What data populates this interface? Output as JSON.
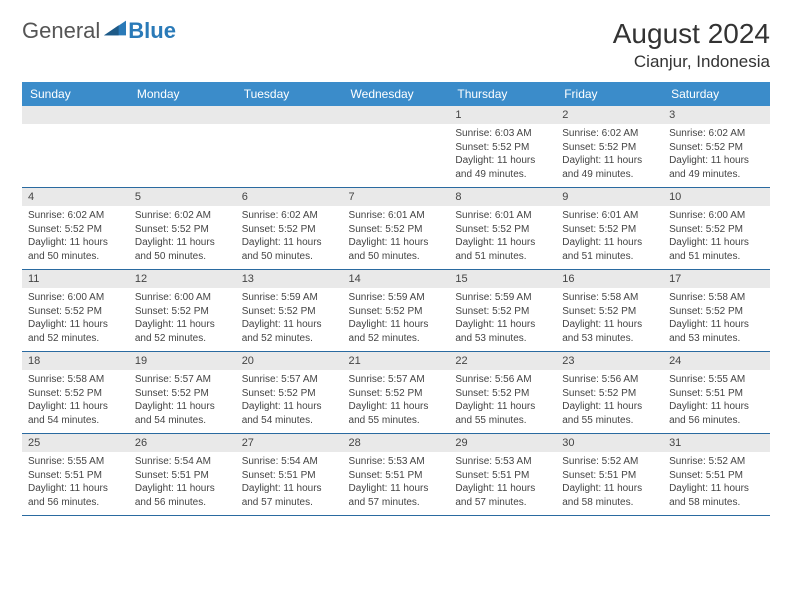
{
  "logo": {
    "text1": "General",
    "text2": "Blue",
    "icon_color": "#2a7ab8"
  },
  "title": "August 2024",
  "location": "Cianjur, Indonesia",
  "colors": {
    "header_bg": "#3b8cca",
    "header_text": "#ffffff",
    "band_bg": "#e9e9e9",
    "border": "#2a6aa0",
    "text": "#444444"
  },
  "day_headers": [
    "Sunday",
    "Monday",
    "Tuesday",
    "Wednesday",
    "Thursday",
    "Friday",
    "Saturday"
  ],
  "weeks": [
    [
      {
        "num": "",
        "sunrise": "",
        "sunset": "",
        "daylight1": "",
        "daylight2": ""
      },
      {
        "num": "",
        "sunrise": "",
        "sunset": "",
        "daylight1": "",
        "daylight2": ""
      },
      {
        "num": "",
        "sunrise": "",
        "sunset": "",
        "daylight1": "",
        "daylight2": ""
      },
      {
        "num": "",
        "sunrise": "",
        "sunset": "",
        "daylight1": "",
        "daylight2": ""
      },
      {
        "num": "1",
        "sunrise": "Sunrise: 6:03 AM",
        "sunset": "Sunset: 5:52 PM",
        "daylight1": "Daylight: 11 hours",
        "daylight2": "and 49 minutes."
      },
      {
        "num": "2",
        "sunrise": "Sunrise: 6:02 AM",
        "sunset": "Sunset: 5:52 PM",
        "daylight1": "Daylight: 11 hours",
        "daylight2": "and 49 minutes."
      },
      {
        "num": "3",
        "sunrise": "Sunrise: 6:02 AM",
        "sunset": "Sunset: 5:52 PM",
        "daylight1": "Daylight: 11 hours",
        "daylight2": "and 49 minutes."
      }
    ],
    [
      {
        "num": "4",
        "sunrise": "Sunrise: 6:02 AM",
        "sunset": "Sunset: 5:52 PM",
        "daylight1": "Daylight: 11 hours",
        "daylight2": "and 50 minutes."
      },
      {
        "num": "5",
        "sunrise": "Sunrise: 6:02 AM",
        "sunset": "Sunset: 5:52 PM",
        "daylight1": "Daylight: 11 hours",
        "daylight2": "and 50 minutes."
      },
      {
        "num": "6",
        "sunrise": "Sunrise: 6:02 AM",
        "sunset": "Sunset: 5:52 PM",
        "daylight1": "Daylight: 11 hours",
        "daylight2": "and 50 minutes."
      },
      {
        "num": "7",
        "sunrise": "Sunrise: 6:01 AM",
        "sunset": "Sunset: 5:52 PM",
        "daylight1": "Daylight: 11 hours",
        "daylight2": "and 50 minutes."
      },
      {
        "num": "8",
        "sunrise": "Sunrise: 6:01 AM",
        "sunset": "Sunset: 5:52 PM",
        "daylight1": "Daylight: 11 hours",
        "daylight2": "and 51 minutes."
      },
      {
        "num": "9",
        "sunrise": "Sunrise: 6:01 AM",
        "sunset": "Sunset: 5:52 PM",
        "daylight1": "Daylight: 11 hours",
        "daylight2": "and 51 minutes."
      },
      {
        "num": "10",
        "sunrise": "Sunrise: 6:00 AM",
        "sunset": "Sunset: 5:52 PM",
        "daylight1": "Daylight: 11 hours",
        "daylight2": "and 51 minutes."
      }
    ],
    [
      {
        "num": "11",
        "sunrise": "Sunrise: 6:00 AM",
        "sunset": "Sunset: 5:52 PM",
        "daylight1": "Daylight: 11 hours",
        "daylight2": "and 52 minutes."
      },
      {
        "num": "12",
        "sunrise": "Sunrise: 6:00 AM",
        "sunset": "Sunset: 5:52 PM",
        "daylight1": "Daylight: 11 hours",
        "daylight2": "and 52 minutes."
      },
      {
        "num": "13",
        "sunrise": "Sunrise: 5:59 AM",
        "sunset": "Sunset: 5:52 PM",
        "daylight1": "Daylight: 11 hours",
        "daylight2": "and 52 minutes."
      },
      {
        "num": "14",
        "sunrise": "Sunrise: 5:59 AM",
        "sunset": "Sunset: 5:52 PM",
        "daylight1": "Daylight: 11 hours",
        "daylight2": "and 52 minutes."
      },
      {
        "num": "15",
        "sunrise": "Sunrise: 5:59 AM",
        "sunset": "Sunset: 5:52 PM",
        "daylight1": "Daylight: 11 hours",
        "daylight2": "and 53 minutes."
      },
      {
        "num": "16",
        "sunrise": "Sunrise: 5:58 AM",
        "sunset": "Sunset: 5:52 PM",
        "daylight1": "Daylight: 11 hours",
        "daylight2": "and 53 minutes."
      },
      {
        "num": "17",
        "sunrise": "Sunrise: 5:58 AM",
        "sunset": "Sunset: 5:52 PM",
        "daylight1": "Daylight: 11 hours",
        "daylight2": "and 53 minutes."
      }
    ],
    [
      {
        "num": "18",
        "sunrise": "Sunrise: 5:58 AM",
        "sunset": "Sunset: 5:52 PM",
        "daylight1": "Daylight: 11 hours",
        "daylight2": "and 54 minutes."
      },
      {
        "num": "19",
        "sunrise": "Sunrise: 5:57 AM",
        "sunset": "Sunset: 5:52 PM",
        "daylight1": "Daylight: 11 hours",
        "daylight2": "and 54 minutes."
      },
      {
        "num": "20",
        "sunrise": "Sunrise: 5:57 AM",
        "sunset": "Sunset: 5:52 PM",
        "daylight1": "Daylight: 11 hours",
        "daylight2": "and 54 minutes."
      },
      {
        "num": "21",
        "sunrise": "Sunrise: 5:57 AM",
        "sunset": "Sunset: 5:52 PM",
        "daylight1": "Daylight: 11 hours",
        "daylight2": "and 55 minutes."
      },
      {
        "num": "22",
        "sunrise": "Sunrise: 5:56 AM",
        "sunset": "Sunset: 5:52 PM",
        "daylight1": "Daylight: 11 hours",
        "daylight2": "and 55 minutes."
      },
      {
        "num": "23",
        "sunrise": "Sunrise: 5:56 AM",
        "sunset": "Sunset: 5:52 PM",
        "daylight1": "Daylight: 11 hours",
        "daylight2": "and 55 minutes."
      },
      {
        "num": "24",
        "sunrise": "Sunrise: 5:55 AM",
        "sunset": "Sunset: 5:51 PM",
        "daylight1": "Daylight: 11 hours",
        "daylight2": "and 56 minutes."
      }
    ],
    [
      {
        "num": "25",
        "sunrise": "Sunrise: 5:55 AM",
        "sunset": "Sunset: 5:51 PM",
        "daylight1": "Daylight: 11 hours",
        "daylight2": "and 56 minutes."
      },
      {
        "num": "26",
        "sunrise": "Sunrise: 5:54 AM",
        "sunset": "Sunset: 5:51 PM",
        "daylight1": "Daylight: 11 hours",
        "daylight2": "and 56 minutes."
      },
      {
        "num": "27",
        "sunrise": "Sunrise: 5:54 AM",
        "sunset": "Sunset: 5:51 PM",
        "daylight1": "Daylight: 11 hours",
        "daylight2": "and 57 minutes."
      },
      {
        "num": "28",
        "sunrise": "Sunrise: 5:53 AM",
        "sunset": "Sunset: 5:51 PM",
        "daylight1": "Daylight: 11 hours",
        "daylight2": "and 57 minutes."
      },
      {
        "num": "29",
        "sunrise": "Sunrise: 5:53 AM",
        "sunset": "Sunset: 5:51 PM",
        "daylight1": "Daylight: 11 hours",
        "daylight2": "and 57 minutes."
      },
      {
        "num": "30",
        "sunrise": "Sunrise: 5:52 AM",
        "sunset": "Sunset: 5:51 PM",
        "daylight1": "Daylight: 11 hours",
        "daylight2": "and 58 minutes."
      },
      {
        "num": "31",
        "sunrise": "Sunrise: 5:52 AM",
        "sunset": "Sunset: 5:51 PM",
        "daylight1": "Daylight: 11 hours",
        "daylight2": "and 58 minutes."
      }
    ]
  ]
}
